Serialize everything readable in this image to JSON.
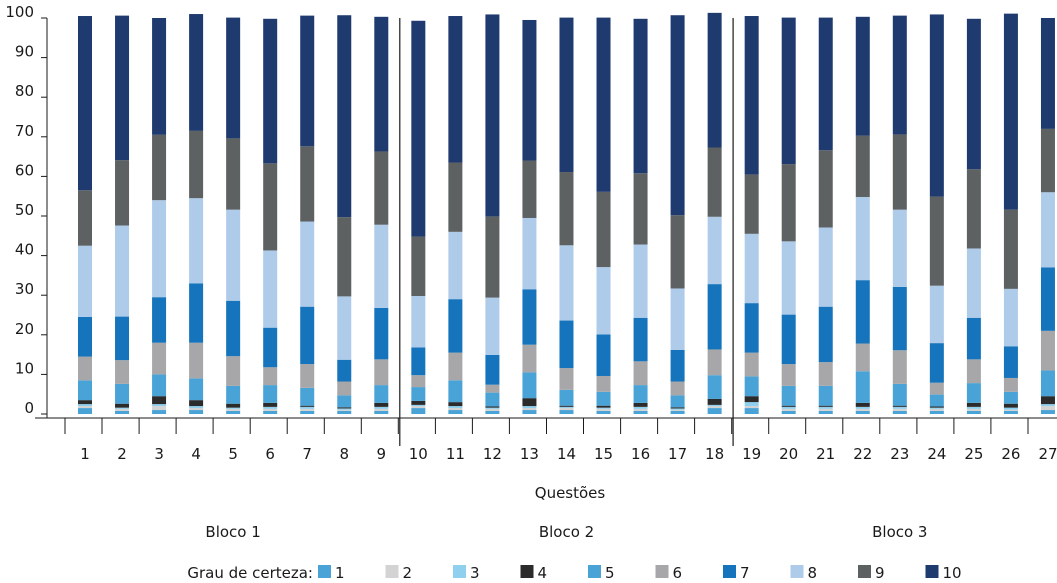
{
  "chart_data": {
    "type": "bar",
    "stacked": true,
    "categories": [
      "1",
      "2",
      "3",
      "4",
      "5",
      "6",
      "7",
      "8",
      "9",
      "10",
      "11",
      "12",
      "13",
      "14",
      "15",
      "16",
      "17",
      "18",
      "19",
      "20",
      "21",
      "22",
      "23",
      "24",
      "25",
      "26",
      "27"
    ],
    "xlabel": "Questões",
    "ylabel": "",
    "ylim": [
      0,
      100
    ],
    "yticks": [
      0,
      10,
      20,
      30,
      40,
      50,
      60,
      70,
      80,
      90,
      100
    ],
    "groups": [
      {
        "label": "Bloco 1",
        "from": 1,
        "to": 9
      },
      {
        "label": "Bloco 2",
        "from": 10,
        "to": 18
      },
      {
        "label": "Bloco 3",
        "from": 19,
        "to": 27
      }
    ],
    "legend_title": "Grau de certeza:",
    "legend_position": "bottom",
    "series": [
      {
        "name": "1",
        "color": "#4aa3d6",
        "values": [
          1.5,
          0.8,
          1.0,
          1.0,
          0.8,
          0.8,
          0.8,
          0.8,
          0.8,
          1.5,
          1.0,
          0.8,
          1.0,
          1.0,
          0.8,
          0.8,
          0.8,
          1.5,
          1.5,
          0.8,
          0.8,
          0.8,
          0.8,
          0.8,
          0.8,
          0.8,
          1.0
        ]
      },
      {
        "name": "2",
        "color": "#d3d3d3",
        "values": [
          0.5,
          0.5,
          1.0,
          0.5,
          0.5,
          0.5,
          0.5,
          0.3,
          0.5,
          0.5,
          0.5,
          0.5,
          0.5,
          0.5,
          0.5,
          0.5,
          0.3,
          0.5,
          0.5,
          0.5,
          0.5,
          0.5,
          0.5,
          0.5,
          0.5,
          0.3,
          1.0
        ]
      },
      {
        "name": "3",
        "color": "#8fd0ee",
        "values": [
          0.5,
          0.3,
          0.5,
          0.5,
          0.3,
          0.5,
          0.5,
          0.3,
          0.5,
          0.3,
          0.5,
          0.3,
          0.5,
          0.3,
          0.3,
          0.5,
          0.3,
          0.3,
          1.0,
          0.5,
          0.5,
          0.5,
          0.5,
          0.3,
          0.5,
          0.5,
          0.5
        ]
      },
      {
        "name": "4",
        "color": "#2b2b2b",
        "values": [
          1.0,
          1.0,
          2.0,
          1.5,
          1.0,
          1.0,
          0.3,
          0.3,
          1.0,
          1.0,
          1.0,
          0.3,
          2.0,
          0.3,
          0.5,
          1.0,
          0.3,
          1.5,
          1.5,
          0.3,
          0.3,
          1.0,
          0.3,
          0.3,
          1.0,
          1.0,
          2.0
        ]
      },
      {
        "name": "5",
        "color": "#4aa3d6",
        "values": [
          5.0,
          5.0,
          5.5,
          5.5,
          4.5,
          4.5,
          4.5,
          3.0,
          4.5,
          3.5,
          5.5,
          3.5,
          6.5,
          4.0,
          3.5,
          4.5,
          3.0,
          6.0,
          5.0,
          5.0,
          5.0,
          8.0,
          5.5,
          3.0,
          5.0,
          3.0,
          6.5
        ]
      },
      {
        "name": "6",
        "color": "#a7a7a9",
        "values": [
          6.0,
          6.0,
          8.0,
          9.0,
          7.5,
          4.5,
          6.0,
          3.5,
          6.5,
          3.0,
          7.0,
          2.0,
          7.0,
          5.5,
          4.0,
          6.0,
          3.5,
          6.5,
          6.0,
          5.5,
          6.0,
          7.0,
          8.5,
          3.0,
          6.0,
          3.5,
          10.0
        ]
      },
      {
        "name": "7",
        "color": "#1574bb",
        "values": [
          10.0,
          11.0,
          11.5,
          15.0,
          14.0,
          10.0,
          14.5,
          5.5,
          13.0,
          7.0,
          13.5,
          7.5,
          14.0,
          12.0,
          10.5,
          11.0,
          8.0,
          16.5,
          12.5,
          12.5,
          14.0,
          16.0,
          16.0,
          10.0,
          10.5,
          8.0,
          16.0
        ]
      },
      {
        "name": "8",
        "color": "#aecbea",
        "values": [
          18.0,
          23.0,
          24.5,
          21.5,
          23.0,
          19.5,
          21.5,
          16.0,
          21.0,
          13.0,
          17.0,
          14.5,
          18.0,
          19.0,
          17.0,
          18.5,
          15.5,
          17.0,
          17.5,
          18.5,
          20.0,
          21.0,
          19.5,
          14.5,
          17.5,
          14.5,
          19.0
        ]
      },
      {
        "name": "9",
        "color": "#5d6162",
        "values": [
          14.0,
          16.5,
          16.5,
          17.0,
          18.0,
          22.0,
          19.0,
          20.0,
          18.5,
          15.0,
          17.5,
          20.5,
          14.5,
          18.5,
          19.0,
          18.0,
          18.5,
          17.5,
          15.0,
          19.5,
          19.5,
          15.5,
          19.0,
          22.5,
          20.0,
          20.0,
          16.0
        ]
      },
      {
        "name": "10",
        "color": "#1f3a6e",
        "values": [
          44.0,
          36.5,
          29.5,
          29.5,
          30.5,
          36.5,
          33.0,
          51.0,
          34.0,
          54.5,
          37.0,
          51.0,
          35.5,
          39.0,
          44.0,
          39.0,
          50.5,
          34.0,
          40.0,
          37.0,
          33.5,
          30.0,
          30.0,
          46.0,
          38.0,
          49.5,
          28.0
        ]
      }
    ]
  }
}
